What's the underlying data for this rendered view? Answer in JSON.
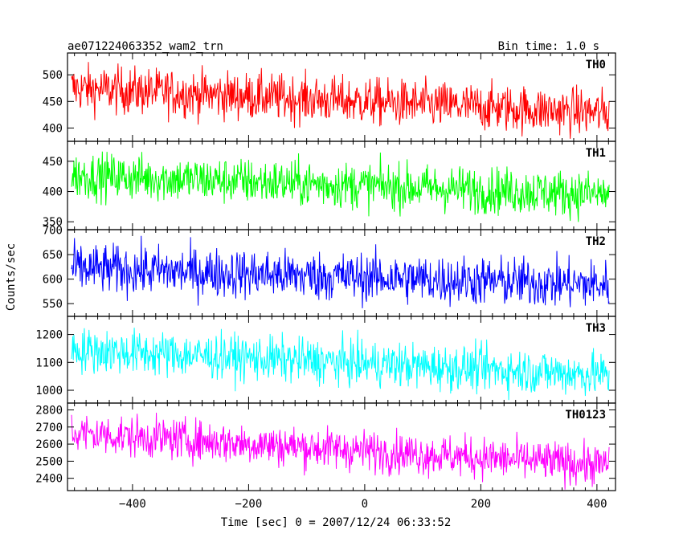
{
  "header": {
    "title": "ae071224063352_wam2_trn",
    "bin_time": "Bin time: 1.0 s"
  },
  "chart_data": {
    "type": "line",
    "xlabel": "Time [sec] 0 = 2007/12/24 06:33:52",
    "ylabel": "Counts/sec",
    "xlim": [
      -512,
      432
    ],
    "x_ticks": [
      -400,
      -200,
      0,
      200,
      400
    ],
    "x_tick_labels": [
      "−400",
      "−200",
      "0",
      "200",
      "400"
    ],
    "x_range": [
      -505,
      421
    ],
    "bin_time": 1.0,
    "panels": [
      {
        "name": "TH0",
        "color": "#ff0000",
        "ylim": [
          375,
          541
        ],
        "ticks": [
          400,
          450,
          500
        ],
        "trend": [
          475,
          428
        ],
        "noise": 22
      },
      {
        "name": "TH1",
        "color": "#00ff00",
        "ylim": [
          337,
          483
        ],
        "ticks": [
          350,
          400,
          450
        ],
        "trend": [
          427,
          395
        ],
        "noise": 19
      },
      {
        "name": "TH2",
        "color": "#0000ff",
        "ylim": [
          524,
          701
        ],
        "ticks": [
          550,
          600,
          650,
          700
        ],
        "trend": [
          622,
          588
        ],
        "noise": 25
      },
      {
        "name": "TH3",
        "color": "#00ffff",
        "ylim": [
          954,
          1265
        ],
        "ticks": [
          1000,
          1100,
          1200
        ],
        "trend": [
          1145,
          1055
        ],
        "noise": 40
      },
      {
        "name": "TH0123",
        "color": "#ff00ff",
        "ylim": [
          2328,
          2840
        ],
        "ticks": [
          2400,
          2500,
          2600,
          2700,
          2800
        ],
        "trend": [
          2665,
          2475
        ],
        "noise": 60
      }
    ]
  }
}
